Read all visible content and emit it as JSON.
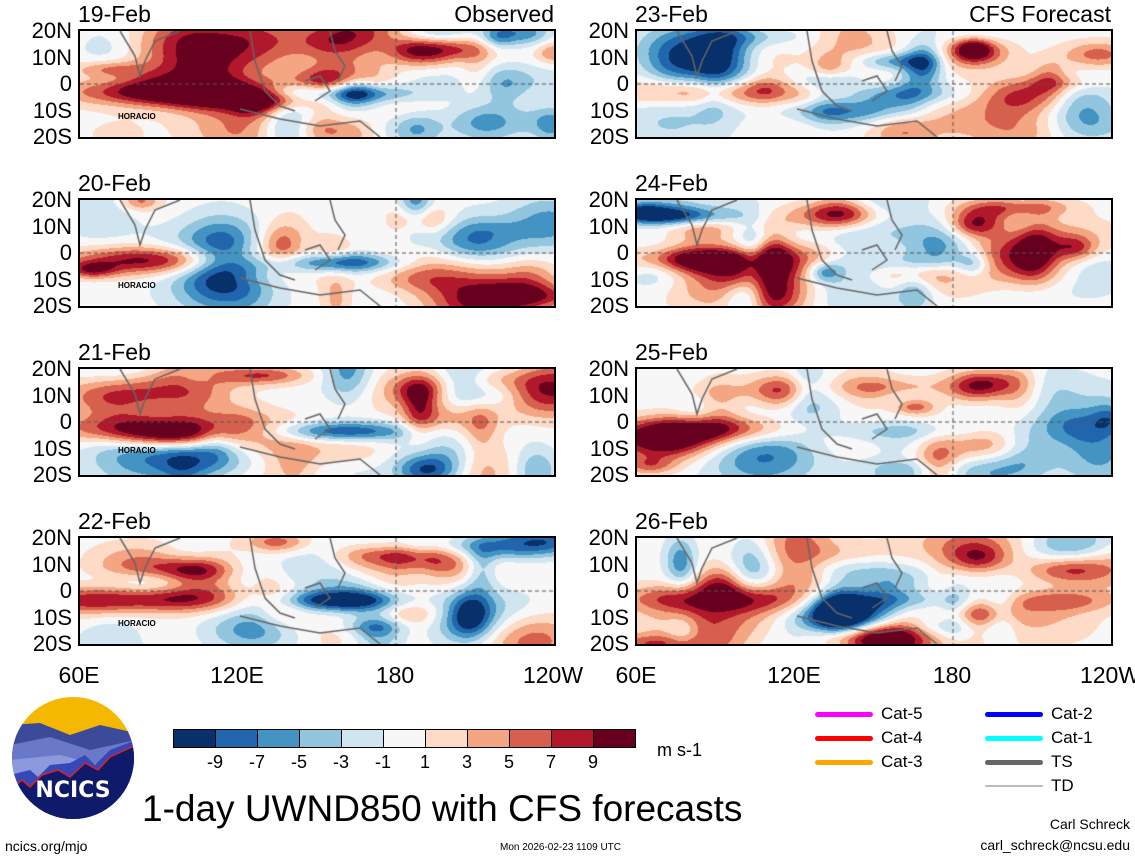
{
  "panels_left": [
    {
      "date": "19-Feb",
      "label": "Observed",
      "storm": "HORACIO"
    },
    {
      "date": "20-Feb",
      "label": "",
      "storm": "HORACIO"
    },
    {
      "date": "21-Feb",
      "label": "",
      "storm": "HORACIO"
    },
    {
      "date": "22-Feb",
      "label": "",
      "storm": "HORACIO"
    }
  ],
  "panels_right": [
    {
      "date": "23-Feb",
      "label": "CFS Forecast"
    },
    {
      "date": "24-Feb",
      "label": ""
    },
    {
      "date": "25-Feb",
      "label": ""
    },
    {
      "date": "26-Feb",
      "label": ""
    }
  ],
  "lat_labels": [
    "20N",
    "10N",
    "0",
    "10S",
    "20S"
  ],
  "lon_labels": [
    "60E",
    "120E",
    "180",
    "120W"
  ],
  "colorbar": {
    "colors": [
      "#08306b",
      "#2166ac",
      "#4393c3",
      "#92c5de",
      "#d1e5f0",
      "#f7f7f7",
      "#fddbc7",
      "#f4a582",
      "#d6604d",
      "#b2182b",
      "#67001f"
    ],
    "ticks": [
      "-9",
      "-7",
      "-5",
      "-3",
      "-1",
      "1",
      "3",
      "5",
      "7",
      "9"
    ],
    "units": "m s-1"
  },
  "storm_legend": [
    {
      "label": "Cat-5",
      "color": "#ff00ff"
    },
    {
      "label": "Cat-4",
      "color": "#ff0000"
    },
    {
      "label": "Cat-3",
      "color": "#ffa500"
    },
    {
      "label": "Cat-2",
      "color": "#0000ff"
    },
    {
      "label": "Cat-1",
      "color": "#00ffff"
    },
    {
      "label": "TS",
      "color": "#666666"
    },
    {
      "label": "TD",
      "color": "#bbbbbb"
    }
  ],
  "title": "1-day UWND850 with CFS forecasts",
  "logo_text": "NCICS",
  "url": "ncics.org/mjo",
  "timestamp": "Mon 2026-02-23 1109 UTC",
  "author": "Carl Schreck",
  "email": "carl_schreck@ncsu.edu"
}
